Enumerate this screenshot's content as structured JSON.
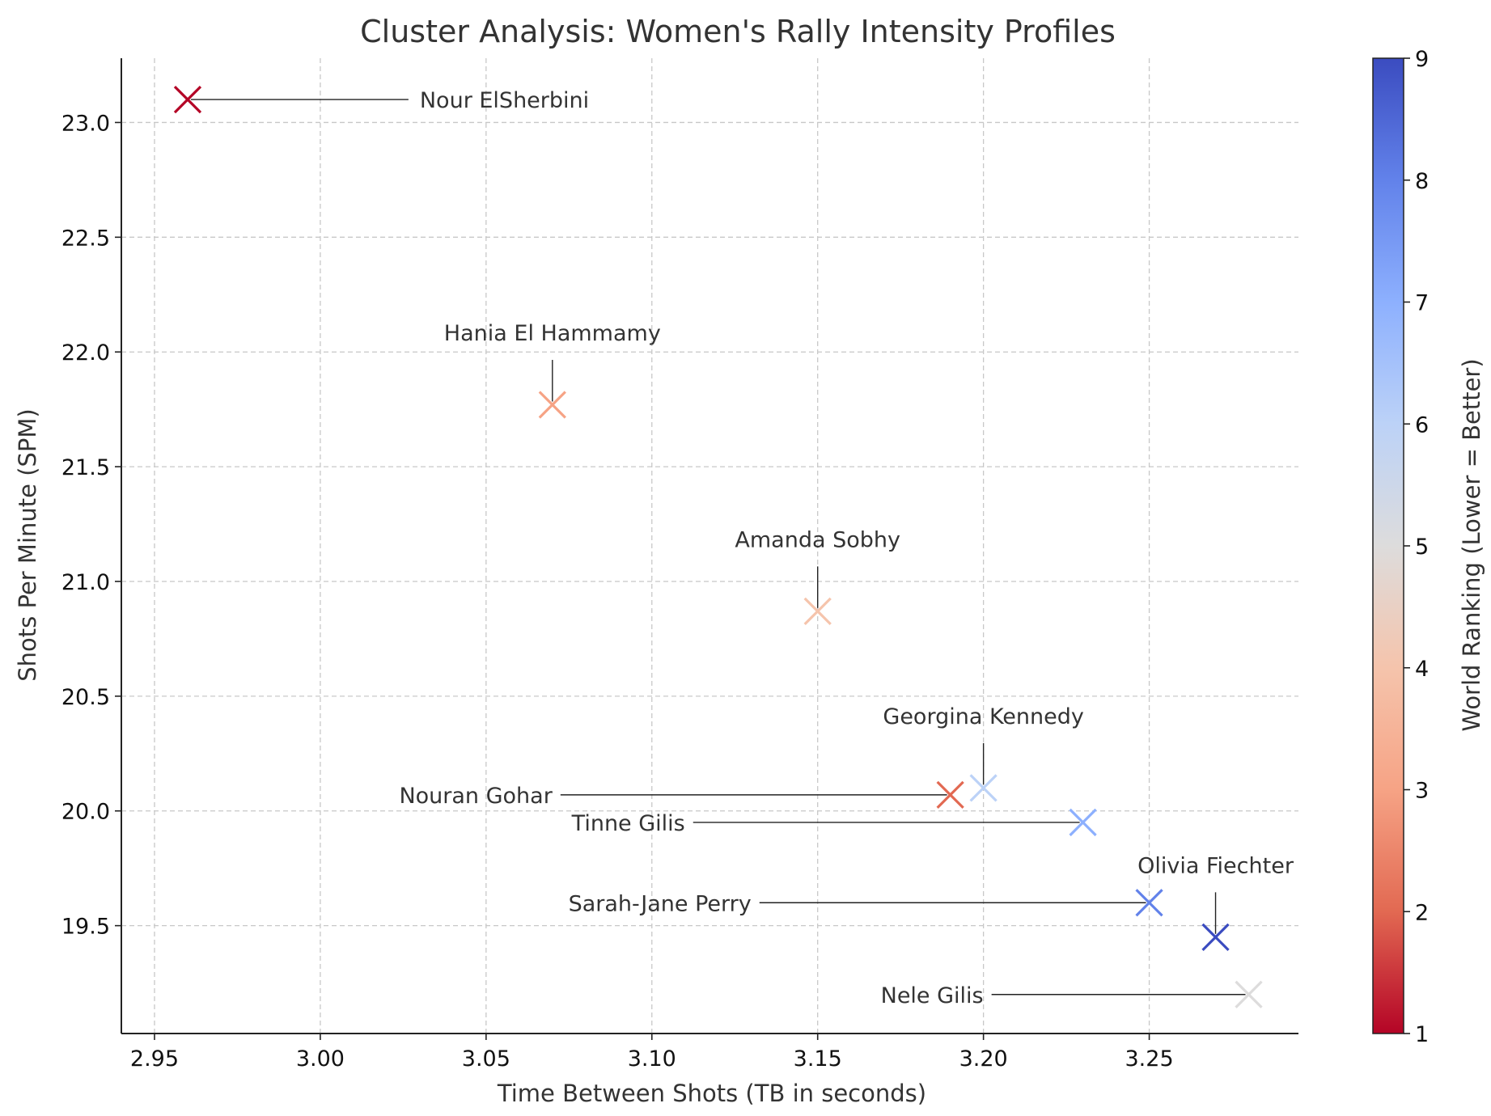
{
  "chart_data": {
    "type": "scatter",
    "title": "Cluster Analysis: Women's Rally Intensity Profiles",
    "xlabel": "Time Between Shots (TB in seconds)",
    "ylabel": "Shots Per Minute (SPM)",
    "xlim": [
      2.94,
      3.295
    ],
    "ylim": [
      19.03,
      23.28
    ],
    "xticks": [
      2.95,
      3.0,
      3.05,
      3.1,
      3.15,
      3.2,
      3.25
    ],
    "xtick_labels": [
      "2.95",
      "3.00",
      "3.05",
      "3.10",
      "3.15",
      "3.20",
      "3.25"
    ],
    "yticks": [
      19.5,
      20.0,
      20.5,
      21.0,
      21.5,
      22.0,
      22.5,
      23.0
    ],
    "ytick_labels": [
      "19.5",
      "20.0",
      "20.5",
      "21.0",
      "21.5",
      "22.0",
      "22.5",
      "23.0"
    ],
    "grid": true,
    "marker": "x",
    "colormap": "coolwarm_r",
    "points": [
      {
        "name": "Nour ElSherbini",
        "x": 2.96,
        "y": 23.1,
        "rank": 1,
        "label_x": 3.03,
        "label_y": 23.1
      },
      {
        "name": "Nouran Gohar",
        "x": 3.19,
        "y": 20.07,
        "rank": 2,
        "label_x": 3.07,
        "label_y": 20.07
      },
      {
        "name": "Hania El Hammamy",
        "x": 3.07,
        "y": 21.77,
        "rank": 3,
        "label_x": 3.07,
        "label_y": 22.05
      },
      {
        "name": "Amanda Sobhy",
        "x": 3.15,
        "y": 20.87,
        "rank": 4,
        "label_x": 3.15,
        "label_y": 21.15
      },
      {
        "name": "Nele Gilis",
        "x": 3.28,
        "y": 19.2,
        "rank": 5,
        "label_x": 3.2,
        "label_y": 19.2
      },
      {
        "name": "Georgina Kennedy",
        "x": 3.2,
        "y": 20.1,
        "rank": 6,
        "label_x": 3.2,
        "label_y": 20.38
      },
      {
        "name": "Tinne Gilis",
        "x": 3.23,
        "y": 19.95,
        "rank": 7,
        "label_x": 3.11,
        "label_y": 19.95
      },
      {
        "name": "Sarah-Jane Perry",
        "x": 3.25,
        "y": 19.6,
        "rank": 8,
        "label_x": 3.13,
        "label_y": 19.6
      },
      {
        "name": "Olivia Fiechter",
        "x": 3.27,
        "y": 19.45,
        "rank": 9,
        "label_x": 3.27,
        "label_y": 19.73
      }
    ],
    "colorbar": {
      "label": "World Ranking (Lower = Better)",
      "min": 1,
      "max": 9,
      "ticks": [
        1,
        2,
        3,
        4,
        5,
        6,
        7,
        8,
        9
      ],
      "tick_labels": [
        "1",
        "2",
        "3",
        "4",
        "5",
        "6",
        "7",
        "8",
        "9"
      ],
      "colors": [
        "#b40426",
        "#e26952",
        "#f6a385",
        "#f5c4ac",
        "#dddcdc",
        "#bcd2f7",
        "#8db0fe",
        "#6282ea",
        "#3b4cc0"
      ]
    }
  }
}
